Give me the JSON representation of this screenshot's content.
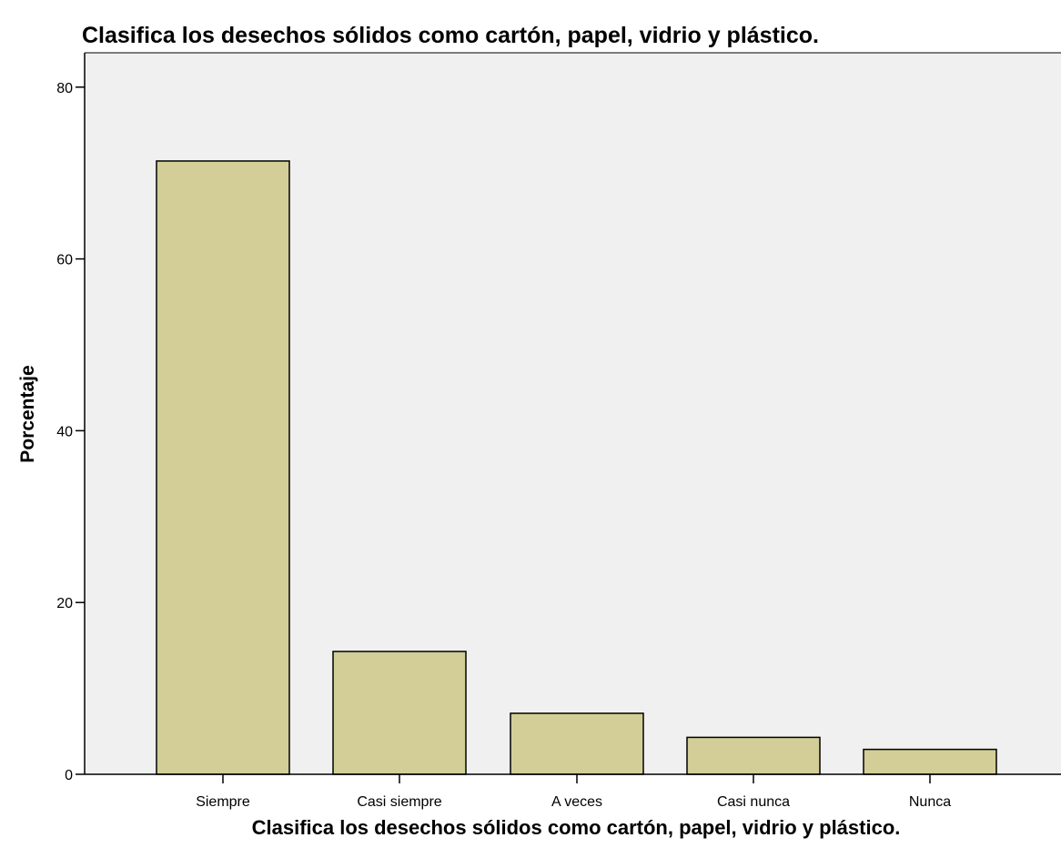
{
  "chart_data": {
    "type": "bar",
    "title": "Clasifica los desechos sólidos como cartón, papel, vidrio y plástico.",
    "xlabel": "Clasifica los desechos sólidos como cartón, papel, vidrio y plástico.",
    "ylabel": "Porcentaje",
    "categories": [
      "Siempre",
      "Casi siempre",
      "A veces",
      "Casi nunca",
      "Nunca"
    ],
    "values": [
      71.4,
      14.3,
      7.1,
      4.3,
      2.9
    ],
    "ylim": [
      0,
      84
    ],
    "yticks": [
      0,
      20,
      40,
      60,
      80
    ],
    "grid": false,
    "legend": "none",
    "colors": {
      "plot_background": "#f0f0f0",
      "bar_fill": "#d3ce97",
      "bar_stroke": "#000000",
      "axis": "#000000"
    }
  }
}
